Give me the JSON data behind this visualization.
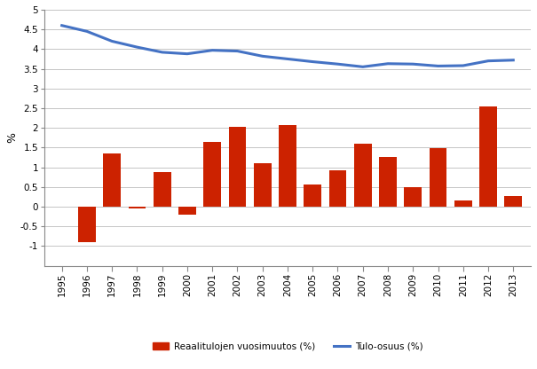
{
  "years": [
    1995,
    1996,
    1997,
    1998,
    1999,
    2000,
    2001,
    2002,
    2003,
    2004,
    2005,
    2006,
    2007,
    2008,
    2009,
    2010,
    2011,
    2012,
    2013
  ],
  "bar_values": [
    null,
    -0.9,
    1.35,
    -0.05,
    0.88,
    -0.2,
    1.65,
    2.03,
    1.1,
    2.06,
    0.57,
    0.93,
    1.6,
    1.27,
    0.5,
    1.48,
    0.15,
    2.55,
    0.27
  ],
  "line_values": [
    4.6,
    4.45,
    4.2,
    4.05,
    3.92,
    3.88,
    3.97,
    3.95,
    3.82,
    3.75,
    3.68,
    3.62,
    3.55,
    3.63,
    3.62,
    3.57,
    3.58,
    3.7,
    3.72
  ],
  "bar_color": "#CC2200",
  "line_color": "#4472C4",
  "ylim": [
    -1.5,
    5.0
  ],
  "yticks": [
    -1.0,
    -0.5,
    0.0,
    0.5,
    1.0,
    1.5,
    2.0,
    2.5,
    3.0,
    3.5,
    4.0,
    4.5,
    5.0
  ],
  "ylabel": "%",
  "bar_label": "Reaalitulojen vuosimuutos (%)",
  "line_label": "Tulo-osuus (%)",
  "background_color": "#ffffff",
  "grid_color": "#bbbbbb",
  "line_width": 2.2
}
